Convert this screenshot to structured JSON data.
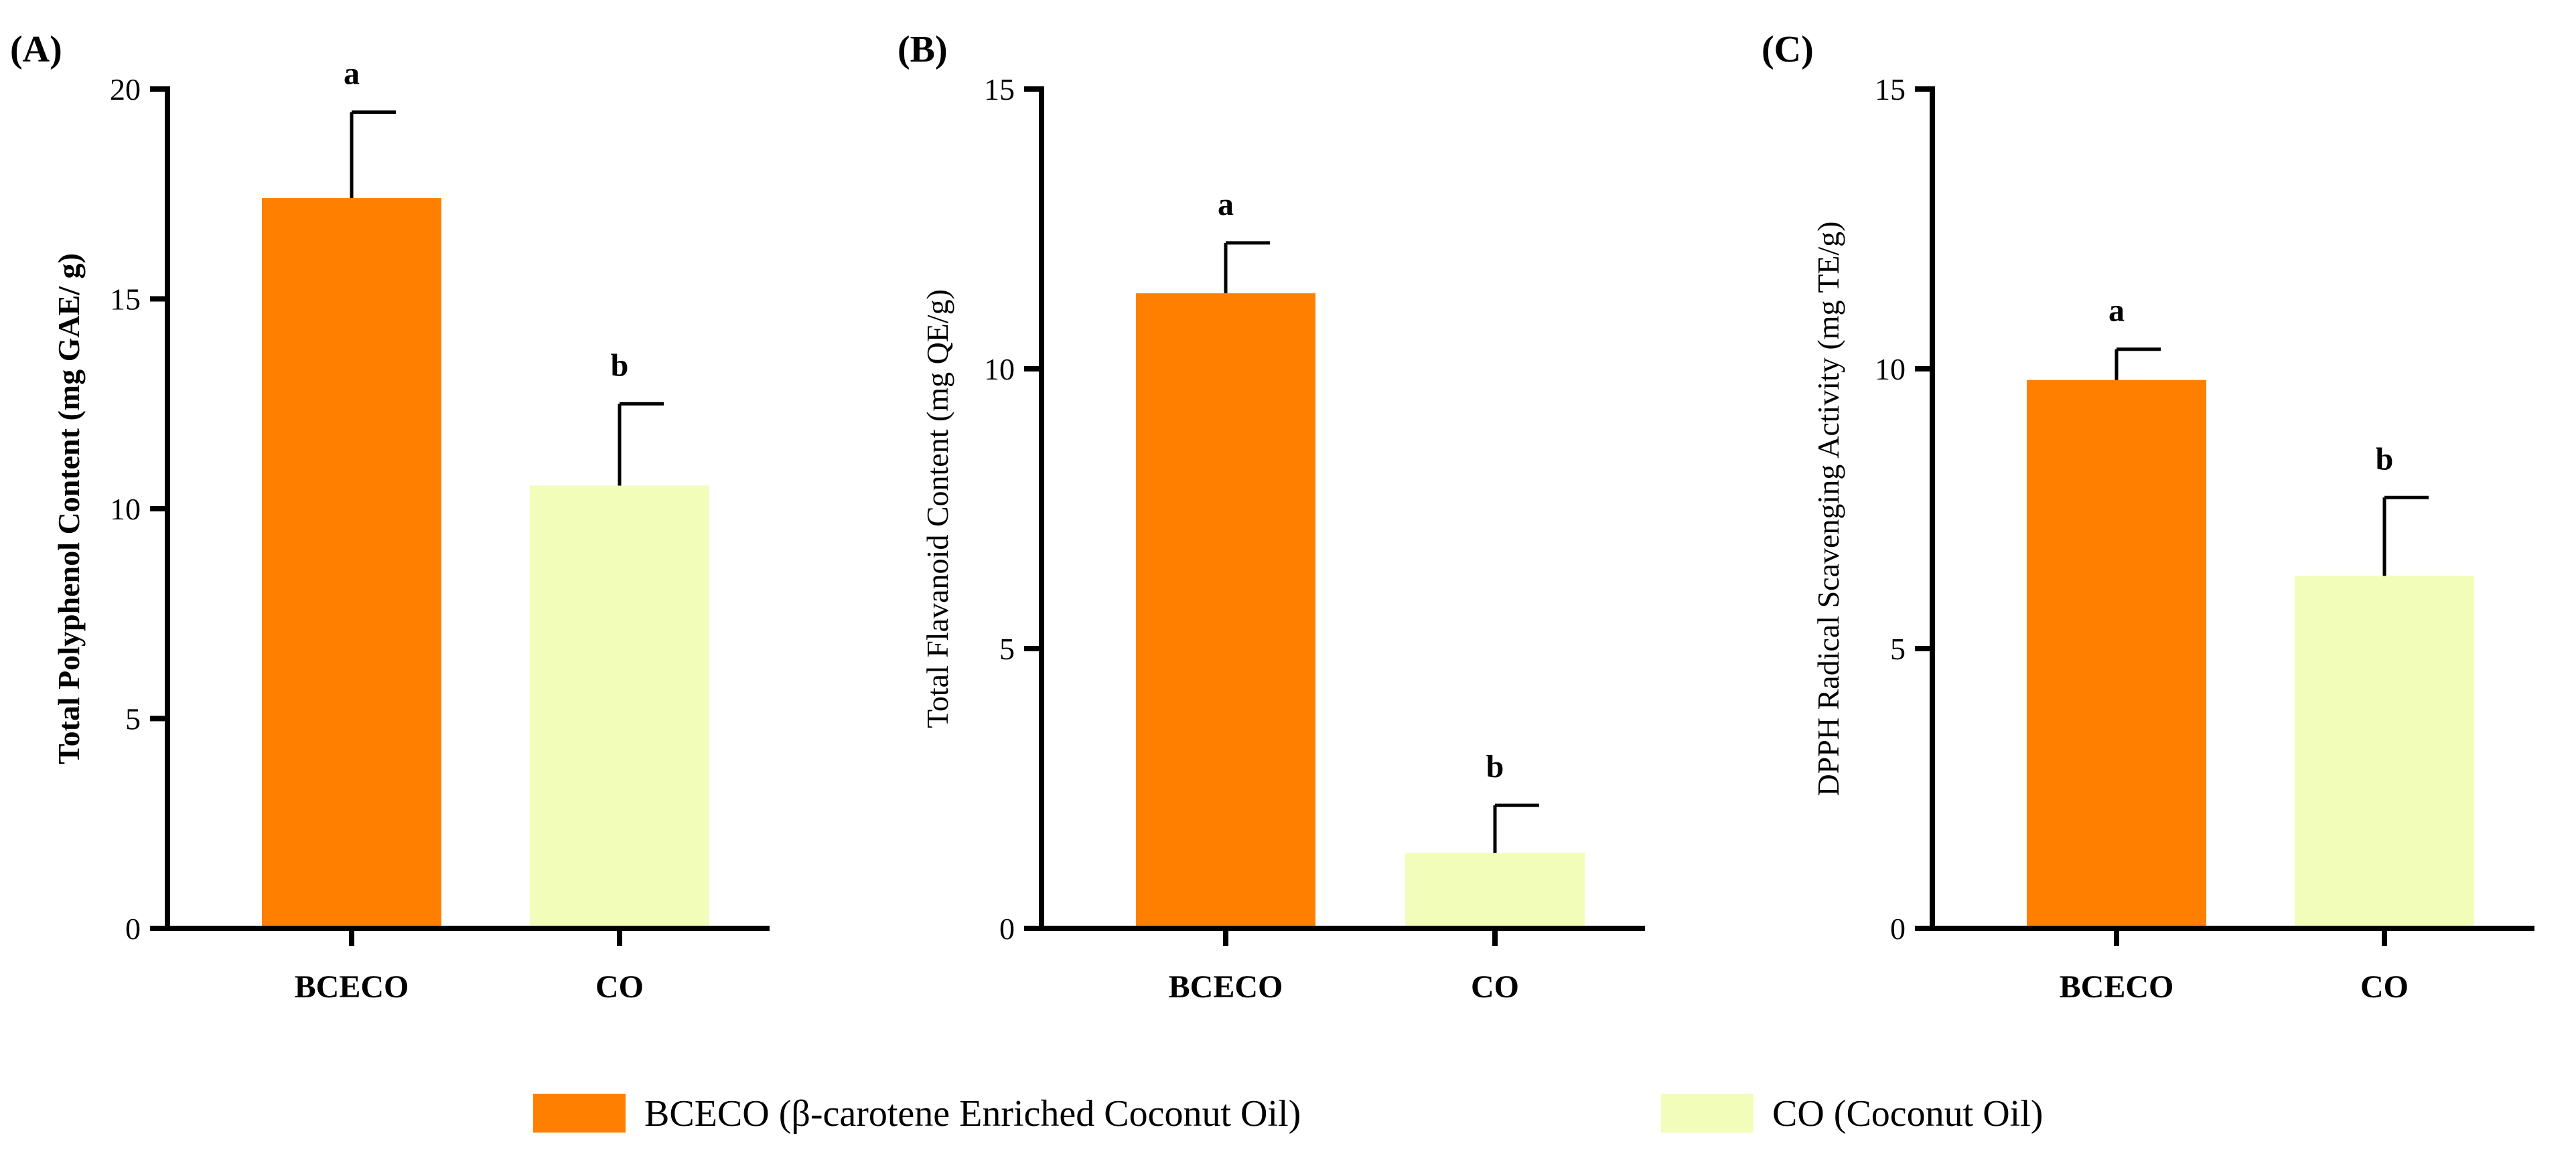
{
  "chart_data": [
    {
      "type": "bar",
      "panel": "(A)",
      "categories": [
        "BCECO",
        "CO"
      ],
      "values": [
        17.4,
        10.55
      ],
      "errors": [
        2.05,
        1.95
      ],
      "significance": [
        "a",
        "b"
      ],
      "ylabel": "Total Polyphenol Content (mg GAE/ g)",
      "ylabel_bold": true,
      "ylim": [
        0,
        20
      ],
      "yticks": [
        0,
        5,
        10,
        15,
        20
      ]
    },
    {
      "type": "bar",
      "panel": "(B)",
      "categories": [
        "BCECO",
        "CO"
      ],
      "values": [
        11.35,
        1.35
      ],
      "errors": [
        0.9,
        0.85
      ],
      "significance": [
        "a",
        "b"
      ],
      "ylabel": "Total Flavanoid Content (mg QE/g)",
      "ylabel_bold": false,
      "ylim": [
        0,
        15
      ],
      "yticks": [
        0,
        5,
        10,
        15
      ]
    },
    {
      "type": "bar",
      "panel": "(C)",
      "categories": [
        "BCECO",
        "CO"
      ],
      "values": [
        9.8,
        6.3
      ],
      "errors": [
        0.55,
        1.4
      ],
      "significance": [
        "a",
        "b"
      ],
      "ylabel": "DPPH Radical Scavenging Activity (mg TE/g)",
      "ylabel_bold": false,
      "ylim": [
        0,
        15
      ],
      "yticks": [
        0,
        5,
        10,
        15
      ]
    }
  ],
  "legend": [
    {
      "label": "BCECO (β-carotene Enriched Coconut Oil)",
      "color": "#FF8000"
    },
    {
      "label": "CO (Coconut Oil)",
      "color": "#F2FDBA"
    }
  ],
  "colors": {
    "BCECO": "#FF8000",
    "CO": "#F2FDBA",
    "axis": "#000000"
  }
}
